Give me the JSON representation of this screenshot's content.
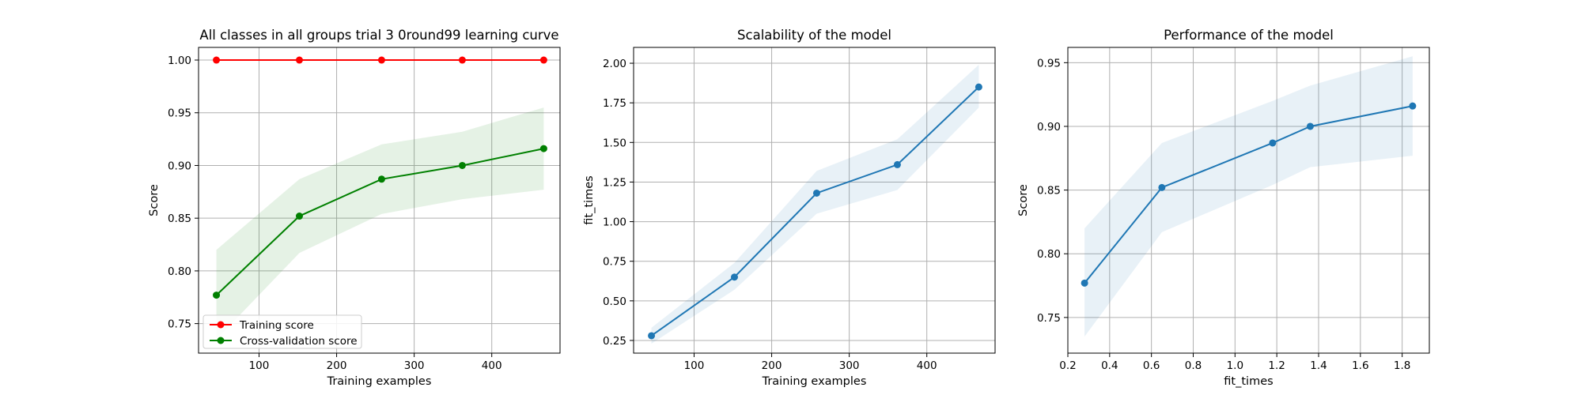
{
  "chart_data": [
    {
      "type": "line",
      "title": "All classes in all groups trial 3 0round99 learning curve",
      "xlabel": "Training examples",
      "ylabel": "Score",
      "xlim": [
        22,
        488
      ],
      "ylim": [
        0.722,
        1.012
      ],
      "xticks": [
        100,
        200,
        300,
        400
      ],
      "yticks": [
        0.75,
        0.8,
        0.85,
        0.9,
        0.95,
        1.0
      ],
      "ytick_format": 2,
      "grid": true,
      "legend_loc": "lower-left",
      "x": [
        45,
        152,
        258,
        362,
        467
      ],
      "series": [
        {
          "name": "Training score",
          "color": "#ff0000",
          "values": [
            1.0,
            1.0,
            1.0,
            1.0,
            1.0
          ],
          "lower": [
            1.0,
            1.0,
            1.0,
            1.0,
            1.0
          ],
          "upper": [
            1.0,
            1.0,
            1.0,
            1.0,
            1.0
          ]
        },
        {
          "name": "Cross-validation score",
          "color": "#008000",
          "values": [
            0.777,
            0.852,
            0.887,
            0.9,
            0.916
          ],
          "lower": [
            0.735,
            0.817,
            0.854,
            0.868,
            0.877
          ],
          "upper": [
            0.82,
            0.887,
            0.92,
            0.932,
            0.955
          ]
        }
      ]
    },
    {
      "type": "line",
      "title": "Scalability of the model",
      "xlabel": "Training examples",
      "ylabel": "fit_times",
      "xlim": [
        22,
        488
      ],
      "ylim": [
        0.17,
        2.1
      ],
      "xticks": [
        100,
        200,
        300,
        400
      ],
      "yticks": [
        0.25,
        0.5,
        0.75,
        1.0,
        1.25,
        1.5,
        1.75,
        2.0
      ],
      "ytick_format": 2,
      "grid": true,
      "x": [
        45,
        152,
        258,
        362,
        467
      ],
      "series": [
        {
          "color": "#1f77b4",
          "values": [
            0.28,
            0.65,
            1.18,
            1.36,
            1.85
          ],
          "lower": [
            0.23,
            0.57,
            1.05,
            1.2,
            1.72
          ],
          "upper": [
            0.33,
            0.74,
            1.32,
            1.52,
            1.99
          ]
        }
      ]
    },
    {
      "type": "line",
      "title": "Performance of the model",
      "xlabel": "fit_times",
      "ylabel": "Score",
      "xlim": [
        0.2,
        1.93
      ],
      "ylim": [
        0.722,
        0.962
      ],
      "xticks": [
        0.2,
        0.4,
        0.6,
        0.8,
        1.0,
        1.2,
        1.4,
        1.6,
        1.8
      ],
      "xtick_format": 1,
      "yticks": [
        0.75,
        0.8,
        0.85,
        0.9,
        0.95
      ],
      "ytick_format": 2,
      "grid": true,
      "x": [
        0.28,
        0.65,
        1.18,
        1.36,
        1.85
      ],
      "series": [
        {
          "color": "#1f77b4",
          "values": [
            0.777,
            0.852,
            0.887,
            0.9,
            0.916
          ],
          "lower": [
            0.735,
            0.817,
            0.854,
            0.868,
            0.877
          ],
          "upper": [
            0.82,
            0.887,
            0.92,
            0.932,
            0.955
          ]
        }
      ]
    }
  ]
}
